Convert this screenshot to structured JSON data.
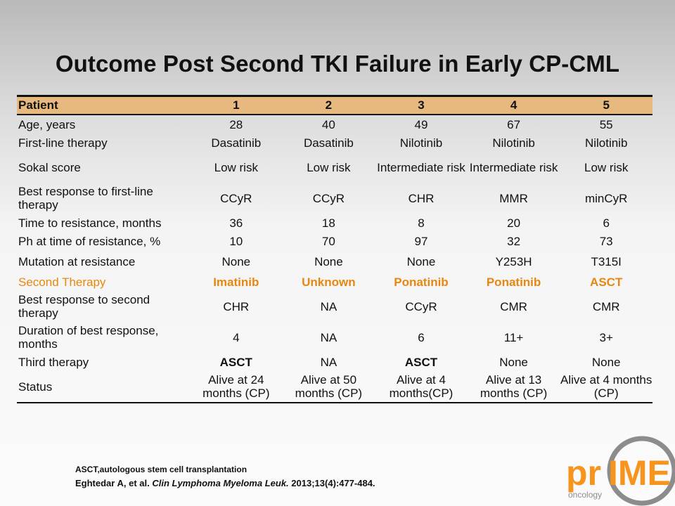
{
  "slide": {
    "title": "Outcome Post Second TKI Failure in Early CP-CML"
  },
  "table": {
    "header": [
      "Patient",
      "1",
      "2",
      "3",
      "4",
      "5"
    ],
    "rows": [
      {
        "label": "Age, years",
        "cells": [
          "28",
          "40",
          "49",
          "67",
          "55"
        ]
      },
      {
        "label": "First-line therapy",
        "cells": [
          "Dasatinib",
          "Dasatinib",
          "Nilotinib",
          "Nilotinib",
          "Nilotinib"
        ]
      },
      {
        "label": "Sokal score",
        "cells": [
          "Low risk",
          "Low risk",
          "Intermediate risk",
          "Intermediate risk",
          "Low risk"
        ]
      },
      {
        "label": "Best response to first-line therapy",
        "cells": [
          "CCyR",
          "CCyR",
          "CHR",
          "MMR",
          "minCyR"
        ]
      },
      {
        "label": "Time to resistance, months",
        "cells": [
          "36",
          "18",
          "8",
          "20",
          "6"
        ]
      },
      {
        "label": "Ph at time of resistance, %",
        "cells": [
          "10",
          "70",
          "97",
          "32",
          "73"
        ]
      },
      {
        "label": "Mutation at resistance",
        "cells": [
          "None",
          "None",
          "None",
          "Y253H",
          "T315I"
        ]
      },
      {
        "label": "Second Therapy",
        "cells": [
          "Imatinib",
          "Unknown",
          "Ponatinib",
          "Ponatinib",
          "ASCT"
        ]
      },
      {
        "label": "Best response to second therapy",
        "cells": [
          "CHR",
          "NA",
          "CCyR",
          "CMR",
          "CMR"
        ]
      },
      {
        "label": "Duration of best response, months",
        "cells": [
          "4",
          "NA",
          "6",
          "11+",
          "3+"
        ]
      },
      {
        "label": "Third therapy",
        "cells": [
          "ASCT",
          "NA",
          "ASCT",
          "None",
          "None"
        ]
      },
      {
        "label": "Status",
        "cells": [
          "Alive at 24 months (CP)",
          "Alive at 50 months (CP)",
          "Alive at 4 months(CP)",
          "Alive at 13 months (CP)",
          "Alive at 4 months (CP)"
        ]
      }
    ]
  },
  "footnote": {
    "abbreviation": "ASCT,autologous stem cell transplantation",
    "citation_authors": "Eghtedar A, et al.",
    "citation_journal": "Clin Lymphoma Myeloma Leuk.",
    "citation_details": "2013;13(4):477-484."
  },
  "logo": {
    "text_main_left": "pr",
    "text_main_right": "IME",
    "text_sub": "oncology",
    "color_orange": "#f7941d",
    "color_gray": "#8c8c8c"
  },
  "colors": {
    "header_row": "#e7b97e",
    "highlight_text": "#e8870f"
  }
}
